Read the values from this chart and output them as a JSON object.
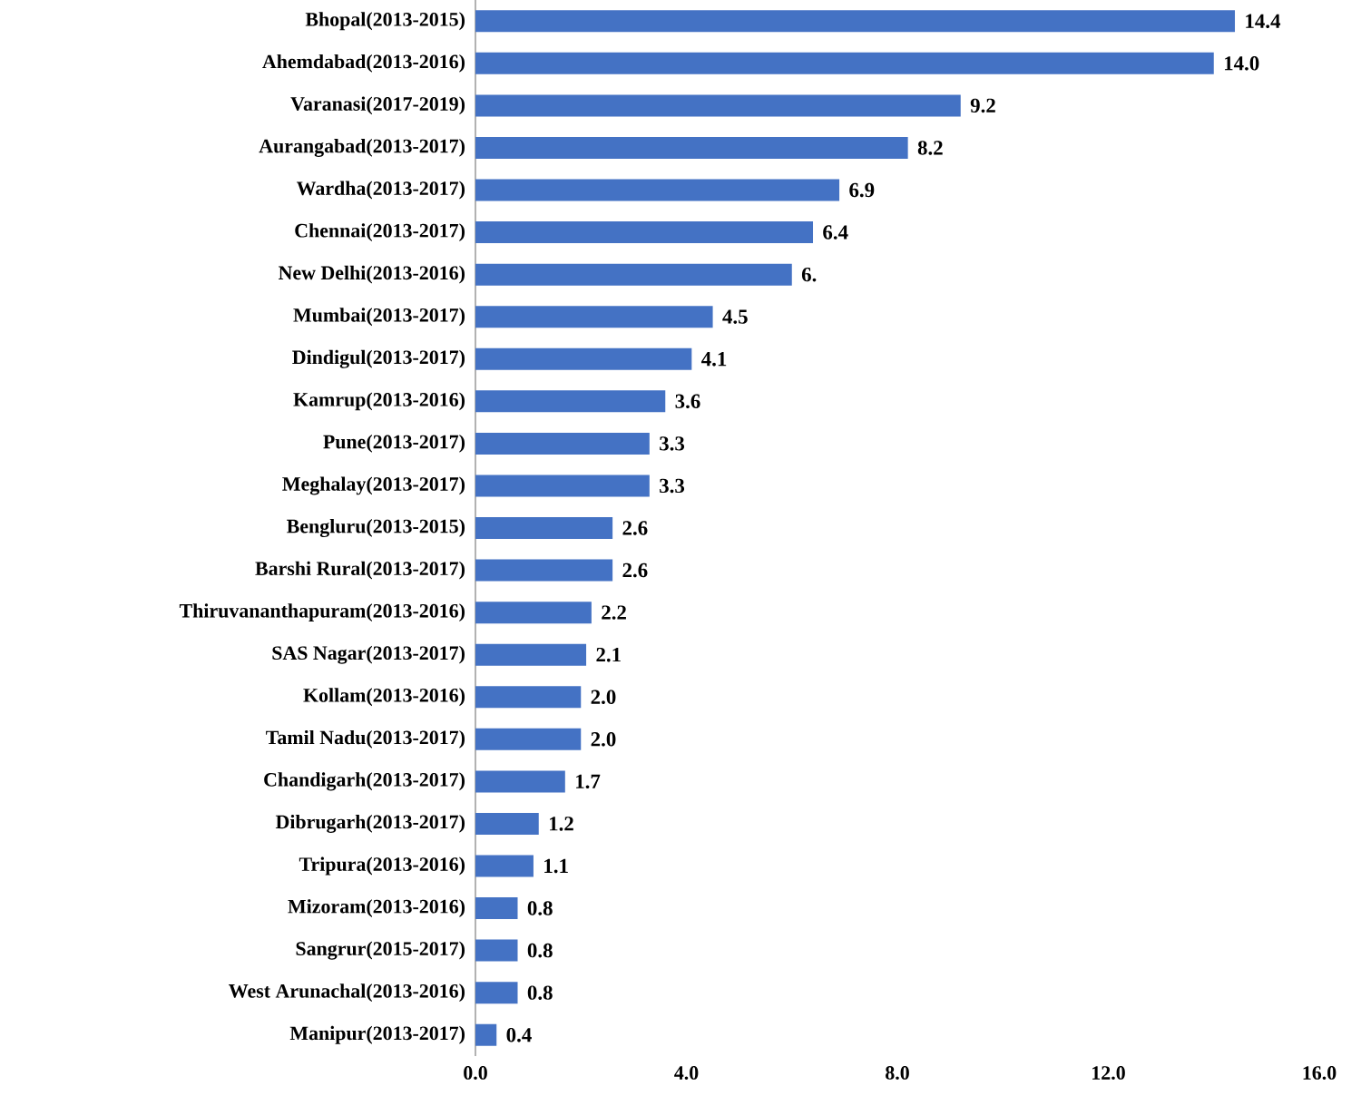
{
  "chart_data": {
    "type": "bar",
    "orientation": "horizontal",
    "color": "#4472c4",
    "categories": [
      "Bhopal(2013-2015)",
      "Ahemdabad(2013-2016)",
      "Varanasi(2017-2019)",
      "Aurangabad(2013-2017)",
      "Wardha(2013-2017)",
      "Chennai(2013-2017)",
      "New Delhi(2013-2016)",
      "Mumbai(2013-2017)",
      "Dindigul(2013-2017)",
      "Kamrup(2013-2016)",
      "Pune(2013-2017)",
      "Meghalay(2013-2017)",
      "Bengluru(2013-2015)",
      "Barshi Rural(2013-2017)",
      "Thiruvananthapuram(2013-2016)",
      "SAS Nagar(2013-2017)",
      "Kollam(2013-2016)",
      "Tamil Nadu(2013-2017)",
      "Chandigarh(2013-2017)",
      "Dibrugarh(2013-2017)",
      "Tripura(2013-2016)",
      "Mizoram(2013-2016)",
      "Sangrur(2015-2017)",
      "West Arunachal(2013-2016)",
      "Manipur(2013-2017)"
    ],
    "values": [
      14.4,
      14.0,
      9.2,
      8.2,
      6.9,
      6.4,
      6.0,
      4.5,
      4.1,
      3.6,
      3.3,
      3.3,
      2.6,
      2.6,
      2.2,
      2.1,
      2.0,
      2.0,
      1.7,
      1.2,
      1.1,
      0.8,
      0.8,
      0.8,
      0.4
    ],
    "value_labels": [
      "14.4",
      "14.0",
      "9.2",
      "8.2",
      "6.9",
      "6.4",
      "6.",
      "4.5",
      "4.1",
      "3.6",
      "3.3",
      "3.3",
      "2.6",
      "2.6",
      "2.2",
      "2.1",
      "2.0",
      "2.0",
      "1.7",
      "1.2",
      "1.1",
      "0.8",
      "0.8",
      "0.8",
      "0.4"
    ],
    "xlim": [
      0,
      16
    ],
    "xticks": [
      {
        "value": 0,
        "label": "0.0"
      },
      {
        "value": 4,
        "label": "4.0"
      },
      {
        "value": 8,
        "label": "8.0"
      },
      {
        "value": 12,
        "label": "12.0"
      },
      {
        "value": 16,
        "label": "16.0"
      }
    ]
  }
}
